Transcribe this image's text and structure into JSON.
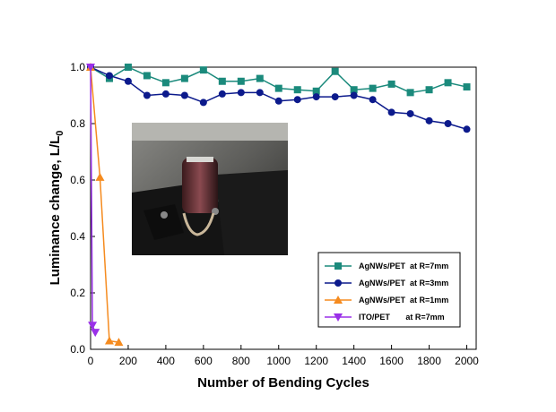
{
  "chart_data": {
    "type": "line",
    "xlabel": "Number of Bending Cycles",
    "ylabel": "Luminance change, L/L",
    "ylabel_sub": "0",
    "xlim": [
      0,
      2050
    ],
    "ylim": [
      0,
      1
    ],
    "xticks": [
      0,
      200,
      400,
      600,
      800,
      1000,
      1200,
      1400,
      1600,
      1800,
      2000
    ],
    "yticks": [
      {
        "value": 0,
        "label": "0.0"
      },
      0.2,
      0.4,
      0.6,
      0.8,
      {
        "value": 1,
        "label": "1.0"
      }
    ],
    "legend_position": "lower right",
    "series": [
      {
        "name": "AgNWs/PET  at R=7mm",
        "color": "#1b8a7c",
        "marker": "square",
        "x": [
          0,
          100,
          200,
          300,
          400,
          500,
          600,
          700,
          800,
          900,
          1000,
          1100,
          1200,
          1300,
          1400,
          1500,
          1600,
          1700,
          1800,
          1900,
          2000
        ],
        "values": [
          1.0,
          0.96,
          1.0,
          0.97,
          0.945,
          0.96,
          0.99,
          0.95,
          0.95,
          0.96,
          0.925,
          0.92,
          0.915,
          0.985,
          0.92,
          0.925,
          0.94,
          0.91,
          0.92,
          0.945,
          0.93
        ]
      },
      {
        "name": "AgNWs/PET  at R=3mm",
        "color": "#0c1a8c",
        "marker": "circle",
        "x": [
          0,
          100,
          200,
          300,
          400,
          500,
          600,
          700,
          800,
          900,
          1000,
          1100,
          1200,
          1300,
          1400,
          1500,
          1600,
          1700,
          1800,
          1900,
          2000
        ],
        "values": [
          1.0,
          0.97,
          0.95,
          0.9,
          0.905,
          0.9,
          0.875,
          0.905,
          0.91,
          0.91,
          0.88,
          0.885,
          0.895,
          0.895,
          0.9,
          0.885,
          0.84,
          0.835,
          0.81,
          0.8,
          0.78
        ]
      },
      {
        "name": "AgNWs/PET  at R=1mm",
        "color": "#f58b1f",
        "marker": "triangle-up",
        "x": [
          0,
          50,
          100,
          150
        ],
        "values": [
          1.0,
          0.61,
          0.03,
          0.025
        ]
      },
      {
        "name": "ITO/PET       at R=7mm",
        "color": "#9a30e8",
        "marker": "triangle-down",
        "x": [
          0,
          10,
          25
        ],
        "values": [
          1.0,
          0.085,
          0.06
        ]
      }
    ]
  }
}
